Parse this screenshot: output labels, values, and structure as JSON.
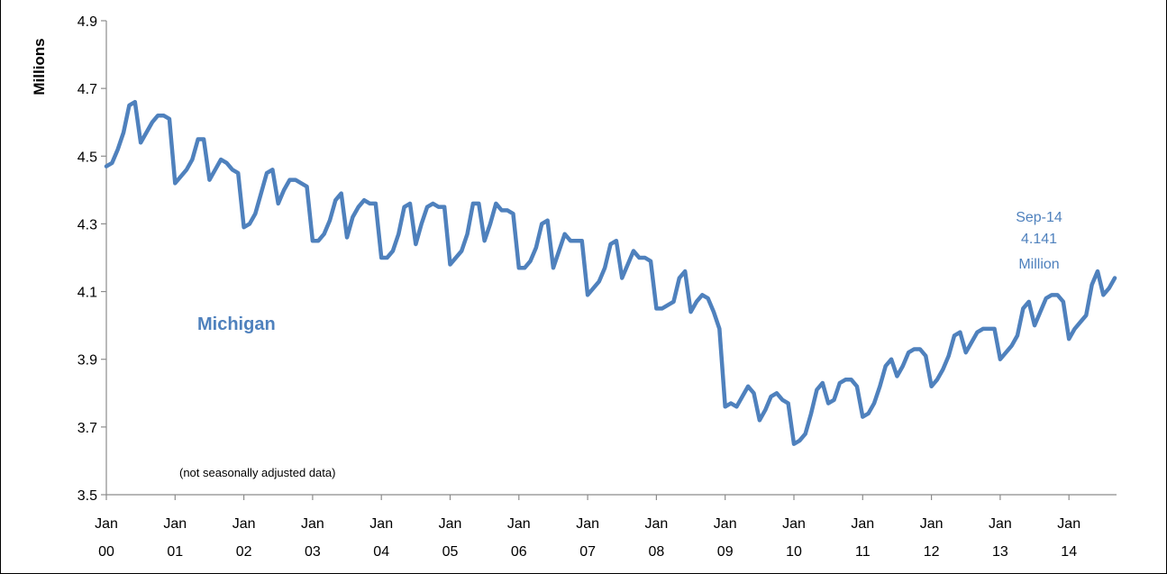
{
  "chart_data": {
    "type": "line",
    "ylabel": "Millions",
    "ylim": [
      3.5,
      4.9
    ],
    "yticks": [
      "3.5",
      "3.7",
      "3.9",
      "4.1",
      "4.3",
      "4.5",
      "4.7",
      "4.9"
    ],
    "x_tick_labels": [
      {
        "line1": "Jan",
        "line2": "00"
      },
      {
        "line1": "Jan",
        "line2": "01"
      },
      {
        "line1": "Jan",
        "line2": "02"
      },
      {
        "line1": "Jan",
        "line2": "03"
      },
      {
        "line1": "Jan",
        "line2": "04"
      },
      {
        "line1": "Jan",
        "line2": "05"
      },
      {
        "line1": "Jan",
        "line2": "06"
      },
      {
        "line1": "Jan",
        "line2": "07"
      },
      {
        "line1": "Jan",
        "line2": "08"
      },
      {
        "line1": "Jan",
        "line2": "09"
      },
      {
        "line1": "Jan",
        "line2": "10"
      },
      {
        "line1": "Jan",
        "line2": "11"
      },
      {
        "line1": "Jan",
        "line2": "12"
      },
      {
        "line1": "Jan",
        "line2": "13"
      },
      {
        "line1": "Jan",
        "line2": "14"
      }
    ],
    "grid": false,
    "series": [
      {
        "name": "Michigan",
        "color": "#4f81bd",
        "start": "2000-01",
        "frequency": "monthly",
        "values": [
          4.47,
          4.48,
          4.52,
          4.57,
          4.65,
          4.66,
          4.54,
          4.57,
          4.6,
          4.62,
          4.62,
          4.61,
          4.42,
          4.44,
          4.46,
          4.49,
          4.55,
          4.55,
          4.43,
          4.46,
          4.49,
          4.48,
          4.46,
          4.45,
          4.29,
          4.3,
          4.33,
          4.39,
          4.45,
          4.46,
          4.36,
          4.4,
          4.43,
          4.43,
          4.42,
          4.41,
          4.25,
          4.25,
          4.27,
          4.31,
          4.37,
          4.39,
          4.26,
          4.32,
          4.35,
          4.37,
          4.36,
          4.36,
          4.2,
          4.2,
          4.22,
          4.27,
          4.35,
          4.36,
          4.24,
          4.3,
          4.35,
          4.36,
          4.35,
          4.35,
          4.18,
          4.2,
          4.22,
          4.27,
          4.36,
          4.36,
          4.25,
          4.3,
          4.36,
          4.34,
          4.34,
          4.33,
          4.17,
          4.17,
          4.19,
          4.23,
          4.3,
          4.31,
          4.17,
          4.22,
          4.27,
          4.25,
          4.25,
          4.25,
          4.09,
          4.11,
          4.13,
          4.17,
          4.24,
          4.25,
          4.14,
          4.18,
          4.22,
          4.2,
          4.2,
          4.19,
          4.05,
          4.05,
          4.06,
          4.07,
          4.14,
          4.16,
          4.04,
          4.07,
          4.09,
          4.08,
          4.04,
          3.99,
          3.76,
          3.77,
          3.76,
          3.79,
          3.82,
          3.8,
          3.72,
          3.75,
          3.79,
          3.8,
          3.78,
          3.77,
          3.65,
          3.66,
          3.68,
          3.74,
          3.81,
          3.83,
          3.77,
          3.78,
          3.83,
          3.84,
          3.84,
          3.82,
          3.73,
          3.74,
          3.77,
          3.82,
          3.88,
          3.9,
          3.85,
          3.88,
          3.92,
          3.93,
          3.93,
          3.91,
          3.82,
          3.84,
          3.87,
          3.91,
          3.97,
          3.98,
          3.92,
          3.95,
          3.98,
          3.99,
          3.99,
          3.99,
          3.9,
          3.92,
          3.94,
          3.97,
          4.05,
          4.07,
          4.0,
          4.04,
          4.08,
          4.09,
          4.09,
          4.07,
          3.96,
          3.99,
          4.01,
          4.03,
          4.12,
          4.16,
          4.09,
          4.11,
          4.14
        ]
      }
    ],
    "annotations": {
      "series_label": "Michigan",
      "note": "(not seasonally adjusted data)",
      "callout": [
        "Sep-14",
        "4.141",
        "Million"
      ]
    }
  }
}
